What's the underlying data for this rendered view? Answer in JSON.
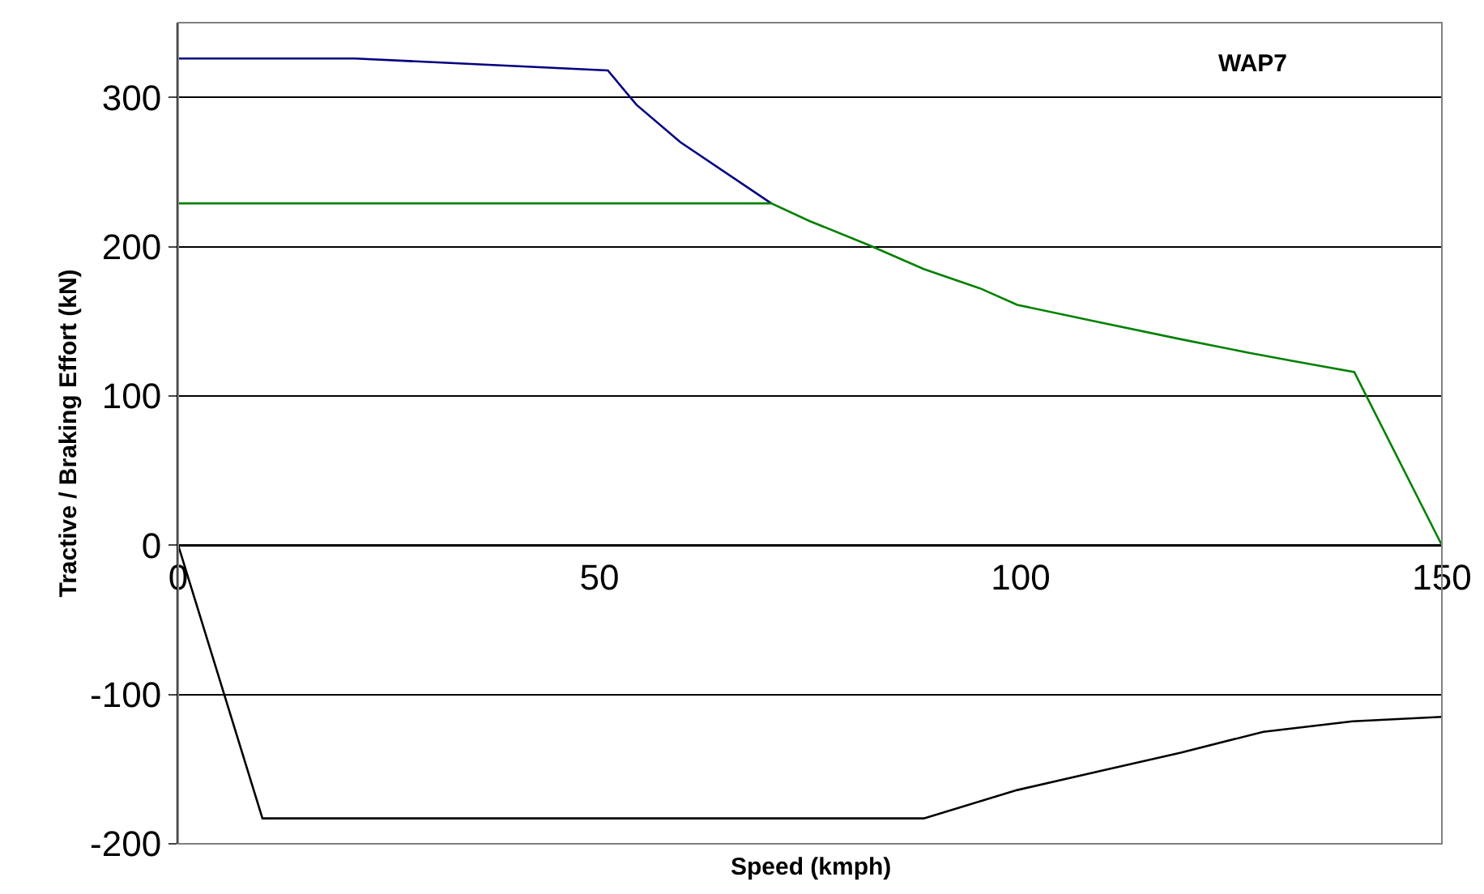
{
  "chart_data": {
    "type": "line",
    "title": "WAP7",
    "xlabel": "Speed (kmph)",
    "ylabel": "Tractive / Braking Effort (kN)",
    "xlim": [
      0,
      150
    ],
    "xticks": [
      0,
      50,
      100,
      150
    ],
    "ylim": [
      -200,
      350
    ],
    "yticks": [
      -200,
      -100,
      0,
      100,
      200,
      300
    ],
    "grid": "y",
    "marker": "none",
    "line_style": "solid",
    "series": [
      {
        "color": "#000080",
        "x": [
          0,
          21,
          51,
          54.4,
          59.6,
          70.4
        ],
        "values": [
          326,
          326,
          318,
          295,
          270,
          229
        ]
      },
      {
        "color": "#008000",
        "x": [
          0,
          70.4,
          75,
          82,
          88.5,
          95.2,
          99.6,
          109.6,
          119,
          127,
          132.7,
          139.6,
          150
        ],
        "values": [
          229,
          229,
          217,
          201,
          185,
          172,
          161,
          149,
          138,
          129,
          123,
          116,
          0
        ]
      },
      {
        "color": "#000000",
        "x": [
          0,
          10,
          88.5,
          99.6,
          109.6,
          119,
          128.8,
          139.4,
          150
        ],
        "values": [
          0,
          -183,
          -183,
          -164,
          -151,
          -139,
          -125,
          -118,
          -115
        ]
      }
    ]
  }
}
